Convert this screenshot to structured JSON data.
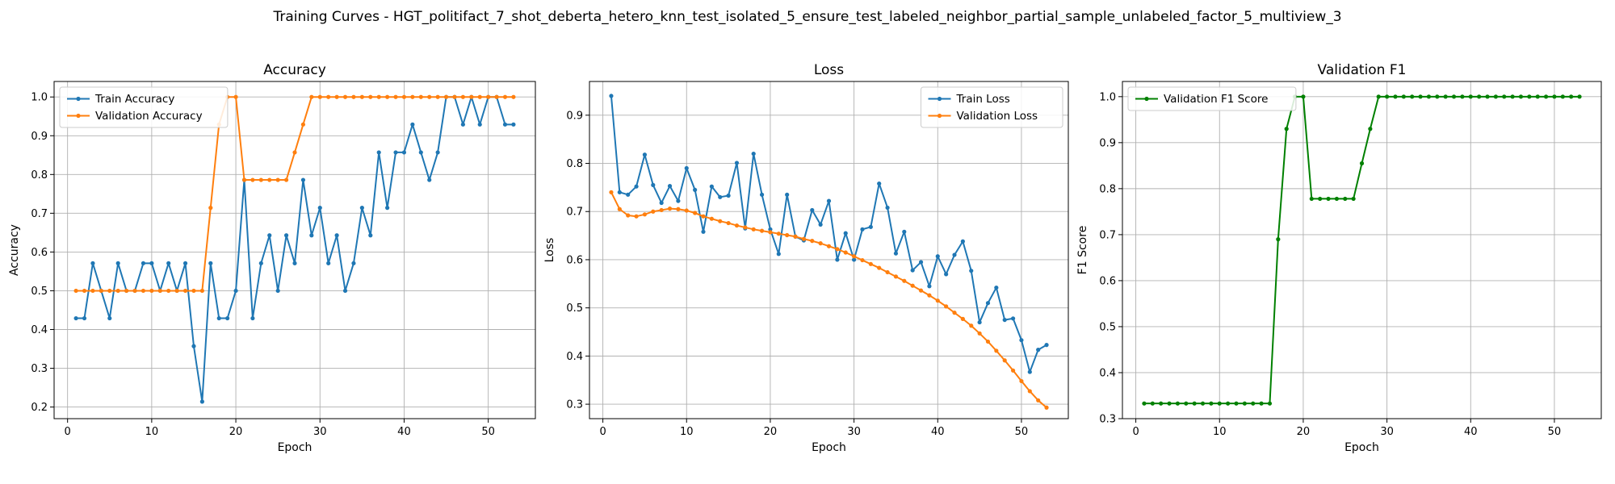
{
  "figure": {
    "suptitle": "Training Curves - HGT_politifact_7_shot_deberta_hetero_knn_test_isolated_5_ensure_test_labeled_neighbor_partial_sample_unlabeled_factor_5_multiview_3"
  },
  "colors": {
    "blue": "#1f77b4",
    "orange": "#ff7f0e",
    "green": "#008000",
    "grid": "#b0b0b0"
  },
  "chart_data": [
    {
      "type": "line",
      "title": "Accuracy",
      "xlabel": "Epoch",
      "ylabel": "Accuracy",
      "xlim": [
        -1.6,
        55.6
      ],
      "ylim": [
        0.17,
        1.04
      ],
      "xticks": [
        0,
        10,
        20,
        30,
        40,
        50
      ],
      "yticks": [
        0.2,
        0.3,
        0.4,
        0.5,
        0.6,
        0.7,
        0.8,
        0.9,
        1.0
      ],
      "ytick_labels": [
        "0.2",
        "0.3",
        "0.4",
        "0.5",
        "0.6",
        "0.7",
        "0.8",
        "0.9",
        "1.0"
      ],
      "grid": true,
      "legend_position": "upper-left",
      "series": [
        {
          "name": "Train Accuracy",
          "color": "#1f77b4",
          "x_start": 1,
          "values": [
            0.429,
            0.429,
            0.571,
            0.5,
            0.429,
            0.571,
            0.5,
            0.5,
            0.571,
            0.571,
            0.5,
            0.571,
            0.5,
            0.571,
            0.357,
            0.214,
            0.571,
            0.429,
            0.429,
            0.5,
            0.786,
            0.429,
            0.571,
            0.643,
            0.5,
            0.643,
            0.571,
            0.786,
            0.643,
            0.714,
            0.571,
            0.643,
            0.5,
            0.571,
            0.714,
            0.643,
            0.857,
            0.714,
            0.857,
            0.857,
            0.929,
            0.857,
            0.786,
            0.857,
            1.0,
            1.0,
            0.929,
            1.0,
            0.929,
            1.0,
            1.0,
            0.929,
            0.929
          ]
        },
        {
          "name": "Validation Accuracy",
          "color": "#ff7f0e",
          "x_start": 1,
          "values": [
            0.5,
            0.5,
            0.5,
            0.5,
            0.5,
            0.5,
            0.5,
            0.5,
            0.5,
            0.5,
            0.5,
            0.5,
            0.5,
            0.5,
            0.5,
            0.5,
            0.714,
            0.929,
            1.0,
            1.0,
            0.786,
            0.786,
            0.786,
            0.786,
            0.786,
            0.786,
            0.857,
            0.929,
            1.0,
            1.0,
            1.0,
            1.0,
            1.0,
            1.0,
            1.0,
            1.0,
            1.0,
            1.0,
            1.0,
            1.0,
            1.0,
            1.0,
            1.0,
            1.0,
            1.0,
            1.0,
            1.0,
            1.0,
            1.0,
            1.0,
            1.0,
            1.0,
            1.0
          ]
        }
      ]
    },
    {
      "type": "line",
      "title": "Loss",
      "xlabel": "Epoch",
      "ylabel": "Loss",
      "xlim": [
        -1.6,
        55.6
      ],
      "ylim": [
        0.27,
        0.97
      ],
      "xticks": [
        0,
        10,
        20,
        30,
        40,
        50
      ],
      "yticks": [
        0.3,
        0.4,
        0.5,
        0.6,
        0.7,
        0.8,
        0.9
      ],
      "ytick_labels": [
        "0.3",
        "0.4",
        "0.5",
        "0.6",
        "0.7",
        "0.8",
        "0.9"
      ],
      "grid": true,
      "legend_position": "upper-right",
      "series": [
        {
          "name": "Train Loss",
          "color": "#1f77b4",
          "x_start": 1,
          "values": [
            0.94,
            0.74,
            0.735,
            0.752,
            0.818,
            0.755,
            0.718,
            0.753,
            0.722,
            0.79,
            0.745,
            0.658,
            0.752,
            0.73,
            0.733,
            0.801,
            0.665,
            0.82,
            0.735,
            0.663,
            0.612,
            0.735,
            0.648,
            0.64,
            0.703,
            0.673,
            0.722,
            0.6,
            0.655,
            0.6,
            0.663,
            0.668,
            0.758,
            0.708,
            0.613,
            0.658,
            0.578,
            0.595,
            0.545,
            0.607,
            0.57,
            0.61,
            0.638,
            0.577,
            0.47,
            0.51,
            0.542,
            0.475,
            0.478,
            0.433,
            0.367,
            0.413,
            0.423
          ]
        },
        {
          "name": "Validation Loss",
          "color": "#ff7f0e",
          "x_start": 1,
          "values": [
            0.74,
            0.705,
            0.692,
            0.69,
            0.694,
            0.7,
            0.703,
            0.706,
            0.705,
            0.702,
            0.697,
            0.69,
            0.685,
            0.68,
            0.676,
            0.671,
            0.667,
            0.663,
            0.66,
            0.657,
            0.654,
            0.651,
            0.648,
            0.643,
            0.639,
            0.634,
            0.628,
            0.622,
            0.615,
            0.607,
            0.599,
            0.591,
            0.583,
            0.574,
            0.565,
            0.556,
            0.546,
            0.536,
            0.526,
            0.515,
            0.503,
            0.49,
            0.477,
            0.463,
            0.447,
            0.43,
            0.411,
            0.391,
            0.37,
            0.348,
            0.327,
            0.308,
            0.293
          ]
        }
      ]
    },
    {
      "type": "line",
      "title": "Validation F1",
      "xlabel": "Epoch",
      "ylabel": "F1 Score",
      "xlim": [
        -1.6,
        55.6
      ],
      "ylim": [
        0.3,
        1.033
      ],
      "xticks": [
        0,
        10,
        20,
        30,
        40,
        50
      ],
      "yticks": [
        0.3,
        0.4,
        0.5,
        0.6,
        0.7,
        0.8,
        0.9,
        1.0
      ],
      "ytick_labels": [
        "0.3",
        "0.4",
        "0.5",
        "0.6",
        "0.7",
        "0.8",
        "0.9",
        "1.0"
      ],
      "grid": true,
      "legend_position": "upper-left",
      "series": [
        {
          "name": "Validation F1 Score",
          "color": "#008000",
          "x_start": 1,
          "values": [
            0.333,
            0.333,
            0.333,
            0.333,
            0.333,
            0.333,
            0.333,
            0.333,
            0.333,
            0.333,
            0.333,
            0.333,
            0.333,
            0.333,
            0.333,
            0.333,
            0.69,
            0.93,
            1.0,
            1.0,
            0.778,
            0.778,
            0.778,
            0.778,
            0.778,
            0.778,
            0.855,
            0.93,
            1.0,
            1.0,
            1.0,
            1.0,
            1.0,
            1.0,
            1.0,
            1.0,
            1.0,
            1.0,
            1.0,
            1.0,
            1.0,
            1.0,
            1.0,
            1.0,
            1.0,
            1.0,
            1.0,
            1.0,
            1.0,
            1.0,
            1.0,
            1.0,
            1.0
          ]
        }
      ]
    }
  ]
}
